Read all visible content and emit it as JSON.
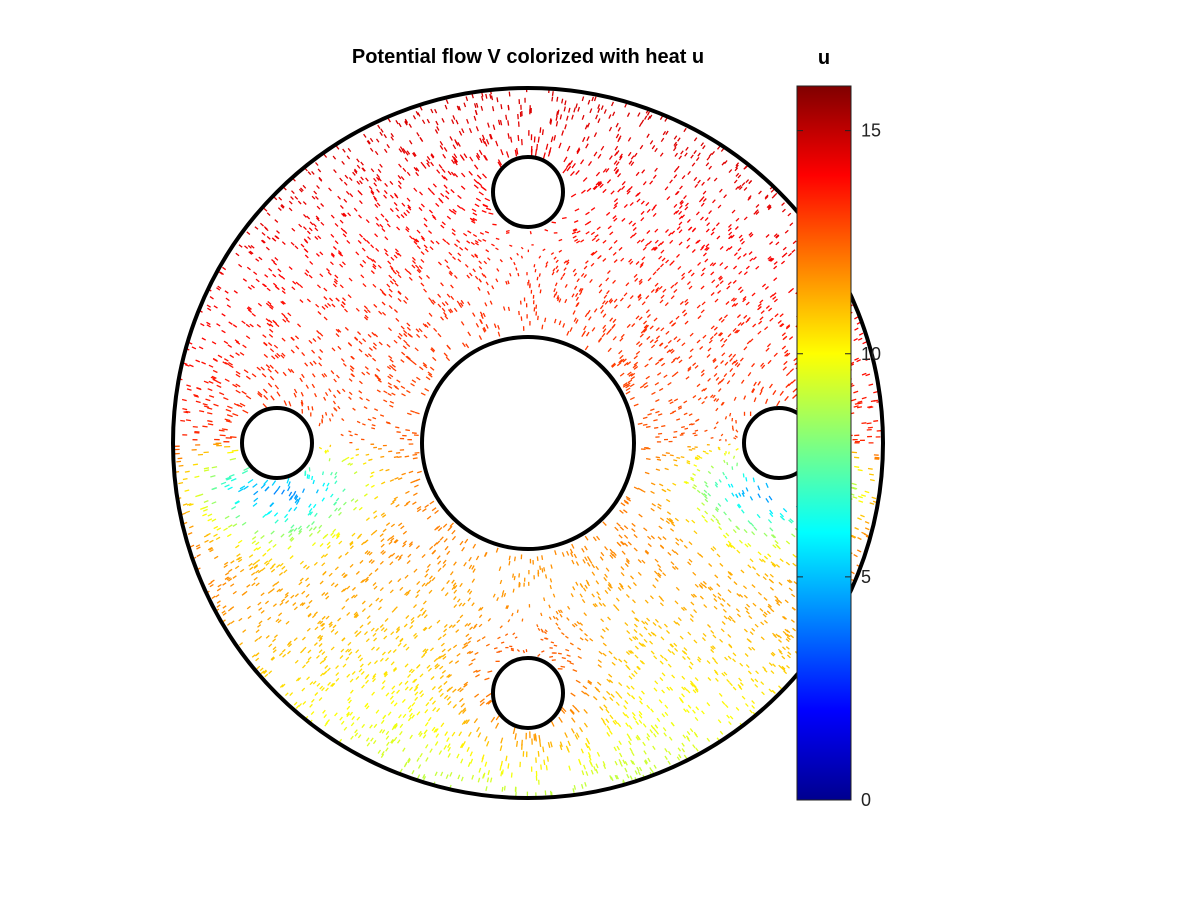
{
  "figure": {
    "title": "Potential flow V colorized with heat u"
  },
  "colorbar": {
    "label": "u",
    "colormap": "jet",
    "min": 0,
    "max": 16,
    "ticks": [
      {
        "value": 0,
        "label": "0"
      },
      {
        "value": 5,
        "label": "5"
      },
      {
        "value": 10,
        "label": "10"
      },
      {
        "value": 15,
        "label": "15"
      }
    ]
  },
  "chart_data": {
    "type": "quiver",
    "title": "Potential flow V colorized with heat u",
    "color_variable": "u",
    "color_range": [
      0,
      16
    ],
    "colormap": "jet",
    "domain": {
      "outer_boundary": {
        "shape": "circle",
        "cx": 0,
        "cy": 0,
        "r": 1.0
      },
      "holes": [
        {
          "name": "center-hole",
          "cx": 0,
          "cy": 0,
          "r": 0.3
        },
        {
          "name": "top-hole",
          "cx": 0,
          "cy": 0.7,
          "r": 0.1
        },
        {
          "name": "bottom-hole",
          "cx": 0,
          "cy": -0.7,
          "r": 0.1
        },
        {
          "name": "left-hole",
          "cx": -0.7,
          "cy": 0,
          "r": 0.1
        },
        {
          "name": "right-hole",
          "cx": 0.7,
          "cy": 0,
          "r": 0.1
        }
      ]
    },
    "grid": false,
    "axes_visible": false
  }
}
